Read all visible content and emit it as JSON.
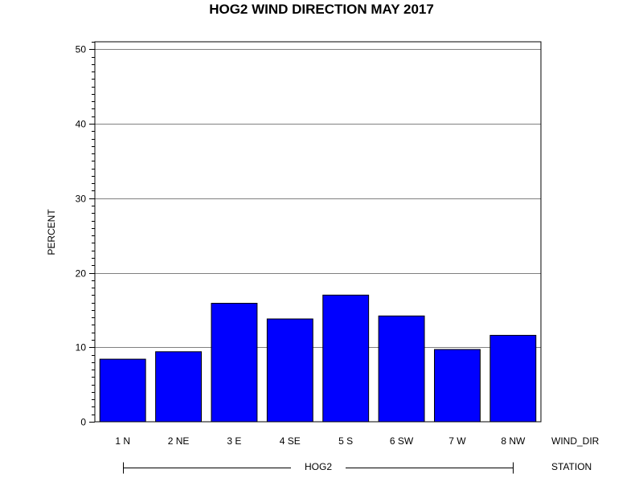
{
  "chart_data": {
    "type": "bar",
    "title": "HOG2 WIND DIRECTION MAY 2017",
    "ylabel": "PERCENT",
    "xlabel": "WIND_DIR",
    "group_axis_label": "STATION",
    "group_label": "HOG2",
    "categories": [
      "1 N",
      "2 NE",
      "3 E",
      "4 SE",
      "5 S",
      "6 SW",
      "7 W",
      "8 NW"
    ],
    "values": [
      8.4,
      9.4,
      15.9,
      13.8,
      17.0,
      14.2,
      9.7,
      11.6
    ],
    "ylim": [
      0,
      51
    ],
    "yticks": [
      0,
      10,
      20,
      30,
      40,
      50
    ],
    "grid": true,
    "bar_color": "#0000ff"
  }
}
